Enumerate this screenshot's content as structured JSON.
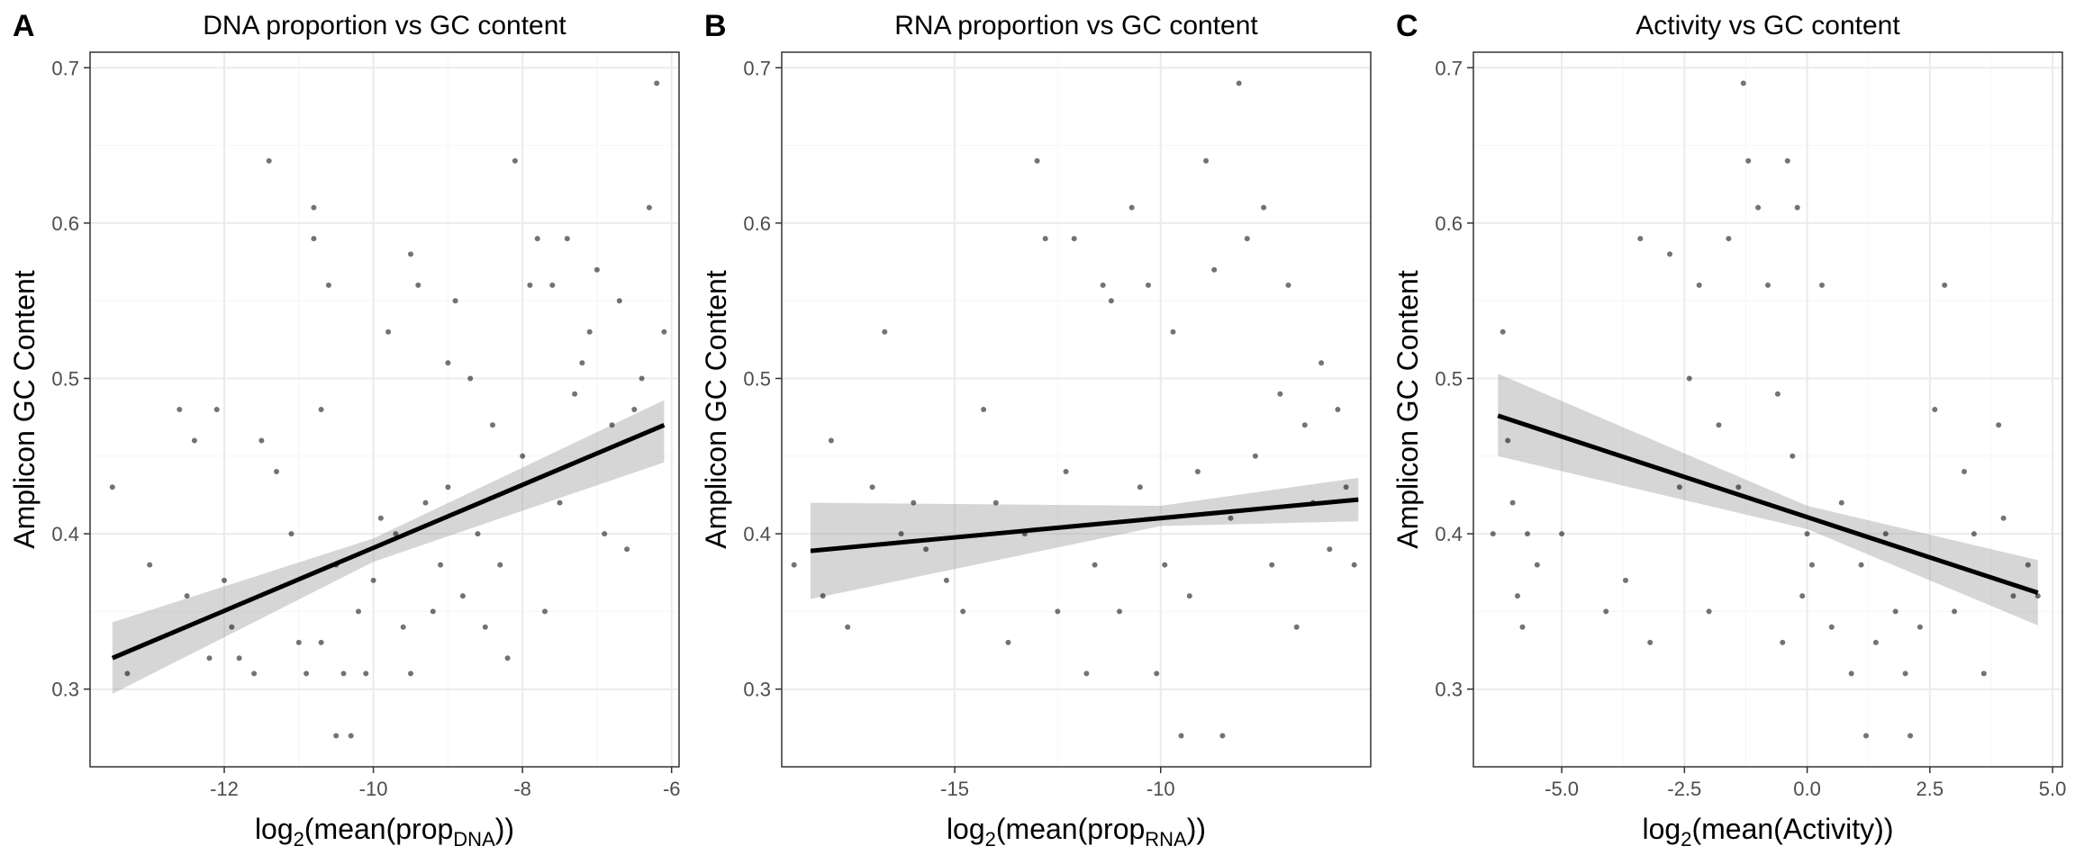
{
  "chart_data": [
    {
      "type": "scatter",
      "letter": "A",
      "title": "DNA proportion vs GC content",
      "xlabel": {
        "pre": "log",
        "sub1": "2",
        "mid": "(mean(prop",
        "sub2": "DNA",
        "post": "))"
      },
      "ylabel": "Amplicon GC Content",
      "xlim": [
        -13.8,
        -5.9
      ],
      "ylim": [
        0.25,
        0.71
      ],
      "xticks": [
        -12,
        -10,
        -8,
        -6
      ],
      "xtick_labels": [
        "-12",
        "-10",
        "-8",
        "-6"
      ],
      "yticks": [
        0.3,
        0.4,
        0.5,
        0.6,
        0.7
      ],
      "ytick_labels": [
        "0.3",
        "0.4",
        "0.5",
        "0.6",
        "0.7"
      ],
      "grid": true,
      "trend": {
        "x0": -13.5,
        "y0": 0.32,
        "x1": -6.1,
        "y1": 0.47,
        "ci_left": [
          0.297,
          0.343
        ],
        "ci_mid": [
          0.382,
          0.397
        ],
        "ci_right": [
          0.446,
          0.486
        ],
        "x_mid": -10.0
      },
      "points": [
        [
          -13.5,
          0.43
        ],
        [
          -13.3,
          0.31
        ],
        [
          -13.0,
          0.38
        ],
        [
          -12.6,
          0.48
        ],
        [
          -12.5,
          0.36
        ],
        [
          -12.4,
          0.46
        ],
        [
          -12.2,
          0.32
        ],
        [
          -12.1,
          0.48
        ],
        [
          -12.0,
          0.37
        ],
        [
          -11.9,
          0.34
        ],
        [
          -11.8,
          0.32
        ],
        [
          -11.6,
          0.31
        ],
        [
          -11.5,
          0.46
        ],
        [
          -11.4,
          0.64
        ],
        [
          -11.3,
          0.44
        ],
        [
          -11.1,
          0.4
        ],
        [
          -11.0,
          0.33
        ],
        [
          -10.9,
          0.31
        ],
        [
          -10.8,
          0.61
        ],
        [
          -10.8,
          0.59
        ],
        [
          -10.7,
          0.48
        ],
        [
          -10.7,
          0.33
        ],
        [
          -10.6,
          0.56
        ],
        [
          -10.5,
          0.27
        ],
        [
          -10.5,
          0.38
        ],
        [
          -10.4,
          0.31
        ],
        [
          -10.3,
          0.27
        ],
        [
          -10.2,
          0.35
        ],
        [
          -10.1,
          0.31
        ],
        [
          -10.0,
          0.37
        ],
        [
          -9.9,
          0.41
        ],
        [
          -9.8,
          0.53
        ],
        [
          -9.7,
          0.4
        ],
        [
          -9.6,
          0.34
        ],
        [
          -9.5,
          0.58
        ],
        [
          -9.5,
          0.31
        ],
        [
          -9.4,
          0.56
        ],
        [
          -9.3,
          0.42
        ],
        [
          -9.2,
          0.35
        ],
        [
          -9.1,
          0.38
        ],
        [
          -9.0,
          0.51
        ],
        [
          -9.0,
          0.43
        ],
        [
          -8.9,
          0.55
        ],
        [
          -8.8,
          0.36
        ],
        [
          -8.7,
          0.5
        ],
        [
          -8.6,
          0.4
        ],
        [
          -8.5,
          0.34
        ],
        [
          -8.4,
          0.47
        ],
        [
          -8.3,
          0.38
        ],
        [
          -8.2,
          0.32
        ],
        [
          -8.1,
          0.64
        ],
        [
          -8.0,
          0.45
        ],
        [
          -7.9,
          0.56
        ],
        [
          -7.8,
          0.59
        ],
        [
          -7.7,
          0.35
        ],
        [
          -7.6,
          0.56
        ],
        [
          -7.5,
          0.42
        ],
        [
          -7.4,
          0.59
        ],
        [
          -7.3,
          0.49
        ],
        [
          -7.2,
          0.51
        ],
        [
          -7.1,
          0.53
        ],
        [
          -7.0,
          0.57
        ],
        [
          -6.9,
          0.4
        ],
        [
          -6.8,
          0.47
        ],
        [
          -6.7,
          0.55
        ],
        [
          -6.6,
          0.39
        ],
        [
          -6.5,
          0.48
        ],
        [
          -6.4,
          0.5
        ],
        [
          -6.3,
          0.61
        ],
        [
          -6.2,
          0.69
        ],
        [
          -6.1,
          0.53
        ]
      ]
    },
    {
      "type": "scatter",
      "letter": "B",
      "title": "RNA proportion vs GC content",
      "xlabel": {
        "pre": "log",
        "sub1": "2",
        "mid": "(mean(prop",
        "sub2": "RNA",
        "post": "))"
      },
      "ylabel": "Amplicon GC Content",
      "xlim": [
        -19.2,
        -4.9
      ],
      "ylim": [
        0.25,
        0.71
      ],
      "xticks": [
        -15,
        -10
      ],
      "xtick_labels": [
        "-15",
        "-10"
      ],
      "yticks": [
        0.3,
        0.4,
        0.5,
        0.6,
        0.7
      ],
      "ytick_labels": [
        "0.3",
        "0.4",
        "0.5",
        "0.6",
        "0.7"
      ],
      "grid": true,
      "trend": {
        "x0": -18.5,
        "y0": 0.389,
        "x1": -5.2,
        "y1": 0.422,
        "ci_left": [
          0.358,
          0.42
        ],
        "ci_mid": [
          0.405,
          0.418
        ],
        "ci_right": [
          0.408,
          0.436
        ],
        "x_mid": -10.0
      },
      "points": [
        [
          -18.9,
          0.38
        ],
        [
          -18.2,
          0.36
        ],
        [
          -18.0,
          0.46
        ],
        [
          -17.6,
          0.34
        ],
        [
          -17.0,
          0.43
        ],
        [
          -16.7,
          0.53
        ],
        [
          -16.3,
          0.4
        ],
        [
          -16.0,
          0.42
        ],
        [
          -15.7,
          0.39
        ],
        [
          -15.2,
          0.37
        ],
        [
          -14.8,
          0.35
        ],
        [
          -14.3,
          0.48
        ],
        [
          -14.0,
          0.42
        ],
        [
          -13.7,
          0.33
        ],
        [
          -13.3,
          0.4
        ],
        [
          -13.0,
          0.64
        ],
        [
          -12.8,
          0.59
        ],
        [
          -12.5,
          0.35
        ],
        [
          -12.3,
          0.44
        ],
        [
          -12.1,
          0.59
        ],
        [
          -11.8,
          0.31
        ],
        [
          -11.6,
          0.38
        ],
        [
          -11.4,
          0.56
        ],
        [
          -11.2,
          0.55
        ],
        [
          -11.0,
          0.35
        ],
        [
          -10.7,
          0.61
        ],
        [
          -10.5,
          0.43
        ],
        [
          -10.3,
          0.56
        ],
        [
          -10.1,
          0.31
        ],
        [
          -9.9,
          0.38
        ],
        [
          -9.7,
          0.53
        ],
        [
          -9.5,
          0.27
        ],
        [
          -9.3,
          0.36
        ],
        [
          -9.1,
          0.44
        ],
        [
          -8.9,
          0.64
        ],
        [
          -8.7,
          0.57
        ],
        [
          -8.5,
          0.27
        ],
        [
          -8.3,
          0.41
        ],
        [
          -8.1,
          0.69
        ],
        [
          -7.9,
          0.59
        ],
        [
          -7.7,
          0.45
        ],
        [
          -7.5,
          0.61
        ],
        [
          -7.3,
          0.38
        ],
        [
          -7.1,
          0.49
        ],
        [
          -6.9,
          0.56
        ],
        [
          -6.7,
          0.34
        ],
        [
          -6.5,
          0.47
        ],
        [
          -6.3,
          0.42
        ],
        [
          -6.1,
          0.51
        ],
        [
          -5.9,
          0.39
        ],
        [
          -5.7,
          0.48
        ],
        [
          -5.5,
          0.43
        ],
        [
          -5.3,
          0.38
        ]
      ]
    },
    {
      "type": "scatter",
      "letter": "C",
      "title": "Activity vs GC content",
      "xlabel": {
        "pre": "log",
        "sub1": "2",
        "mid": "(mean(Activity))",
        "sub2": "",
        "post": ""
      },
      "ylabel": "Amplicon GC Content",
      "xlim": [
        -6.8,
        5.2
      ],
      "ylim": [
        0.25,
        0.71
      ],
      "xticks": [
        -5.0,
        -2.5,
        0.0,
        2.5,
        5.0
      ],
      "xtick_labels": [
        "-5.0",
        "-2.5",
        "0.0",
        "2.5",
        "5.0"
      ],
      "yticks": [
        0.3,
        0.4,
        0.5,
        0.6,
        0.7
      ],
      "ytick_labels": [
        "0.3",
        "0.4",
        "0.5",
        "0.6",
        "0.7"
      ],
      "grid": true,
      "trend": {
        "x0": -6.3,
        "y0": 0.476,
        "x1": 4.7,
        "y1": 0.362,
        "ci_left": [
          0.45,
          0.503
        ],
        "ci_mid": [
          0.403,
          0.418
        ],
        "ci_right": [
          0.341,
          0.383
        ],
        "x_mid": 0.0
      },
      "points": [
        [
          -6.4,
          0.4
        ],
        [
          -6.2,
          0.53
        ],
        [
          -6.1,
          0.46
        ],
        [
          -6.0,
          0.42
        ],
        [
          -5.9,
          0.36
        ],
        [
          -5.8,
          0.34
        ],
        [
          -5.7,
          0.4
        ],
        [
          -5.5,
          0.38
        ],
        [
          -5.0,
          0.4
        ],
        [
          -4.1,
          0.35
        ],
        [
          -3.7,
          0.37
        ],
        [
          -3.4,
          0.59
        ],
        [
          -3.2,
          0.33
        ],
        [
          -2.8,
          0.58
        ],
        [
          -2.6,
          0.43
        ],
        [
          -2.4,
          0.5
        ],
        [
          -2.2,
          0.56
        ],
        [
          -2.0,
          0.35
        ],
        [
          -1.8,
          0.47
        ],
        [
          -1.6,
          0.59
        ],
        [
          -1.4,
          0.43
        ],
        [
          -1.3,
          0.69
        ],
        [
          -1.2,
          0.64
        ],
        [
          -1.0,
          0.61
        ],
        [
          -0.8,
          0.56
        ],
        [
          -0.6,
          0.49
        ],
        [
          -0.5,
          0.33
        ],
        [
          -0.4,
          0.64
        ],
        [
          -0.3,
          0.45
        ],
        [
          -0.2,
          0.61
        ],
        [
          -0.1,
          0.36
        ],
        [
          0.0,
          0.4
        ],
        [
          0.1,
          0.38
        ],
        [
          0.3,
          0.56
        ],
        [
          0.5,
          0.34
        ],
        [
          0.7,
          0.42
        ],
        [
          0.9,
          0.31
        ],
        [
          1.1,
          0.38
        ],
        [
          1.2,
          0.27
        ],
        [
          1.4,
          0.33
        ],
        [
          1.6,
          0.4
        ],
        [
          1.8,
          0.35
        ],
        [
          2.0,
          0.31
        ],
        [
          2.1,
          0.27
        ],
        [
          2.3,
          0.34
        ],
        [
          2.6,
          0.48
        ],
        [
          2.8,
          0.56
        ],
        [
          3.0,
          0.35
        ],
        [
          3.2,
          0.44
        ],
        [
          3.4,
          0.4
        ],
        [
          3.6,
          0.31
        ],
        [
          3.9,
          0.47
        ],
        [
          4.0,
          0.41
        ],
        [
          4.2,
          0.36
        ],
        [
          4.5,
          0.38
        ],
        [
          4.7,
          0.36
        ]
      ]
    }
  ]
}
